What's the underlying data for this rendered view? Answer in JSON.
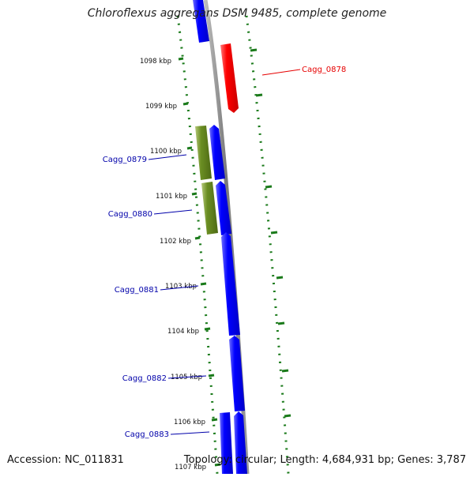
{
  "title": "Chloroflexus aggregans DSM 9485, complete genome",
  "footer": {
    "accession": "Accession: NC_011831",
    "summary": "Topology: circular; Length: 4,684,931 bp; Genes: 3,787"
  },
  "ticks": [
    "1098 kbp",
    "1099 kbp",
    "1100 kbp",
    "1101 kbp",
    "1102 kbp",
    "1103 kbp",
    "1104 kbp",
    "1105 kbp",
    "1106 kbp",
    "1107 kbp"
  ],
  "genes": [
    {
      "label": "Cagg_0878",
      "color": "#e60000",
      "side": "right"
    },
    {
      "label": "Cagg_0879",
      "color": "#0000aa",
      "side": "left"
    },
    {
      "label": "Cagg_0880",
      "color": "#0000aa",
      "side": "left"
    },
    {
      "label": "Cagg_0881",
      "color": "#0000aa",
      "side": "left"
    },
    {
      "label": "Cagg_0882",
      "color": "#0000aa",
      "side": "left"
    },
    {
      "label": "Cagg_0883",
      "color": "#0000aa",
      "side": "left"
    }
  ],
  "colors": {
    "forward_gene": "#0000ee",
    "reverse_gene": "#ee0000",
    "olive_feature": "#6b8e23",
    "backbone": "#888888",
    "gc_dots": "#1a7a1a"
  }
}
